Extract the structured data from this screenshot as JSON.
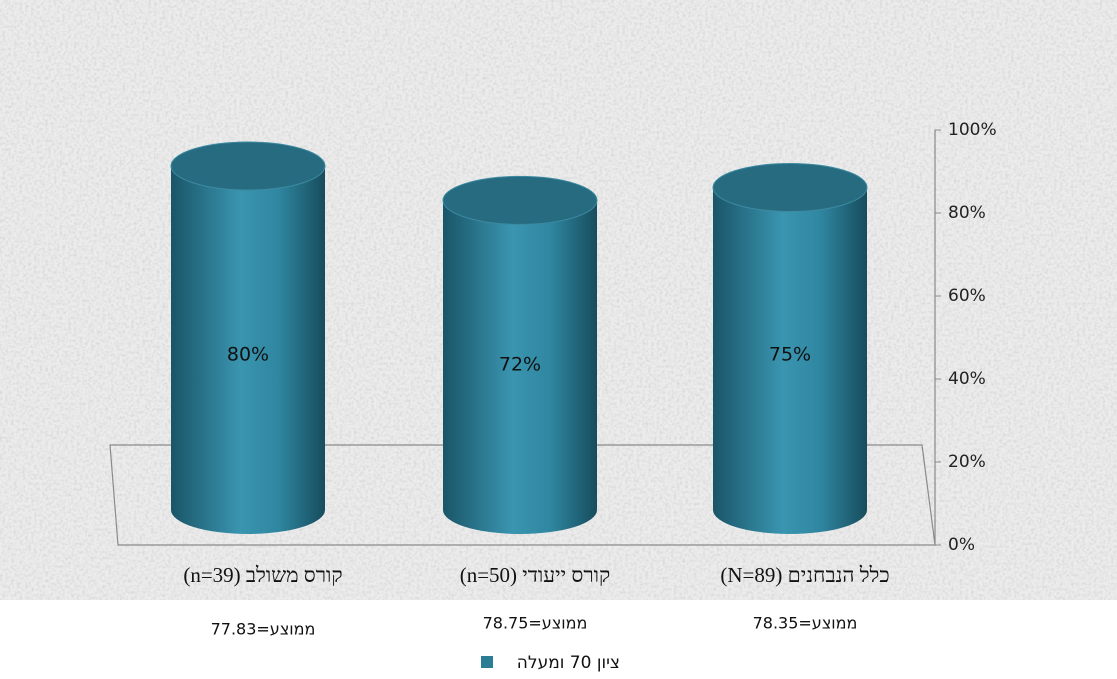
{
  "chart_data": {
    "type": "bar",
    "categories": [
      "כלל הנבחנים (N=89)",
      "קורס ייעודי (n=50)",
      "קורס משולב (n=39)"
    ],
    "category_notes": [
      "ממוצע=78.35",
      "ממוצע=78.75",
      "ממוצע=77.83"
    ],
    "series": [
      {
        "name": "ציון 70 ומעלה",
        "color": "#2b7d96",
        "values": [
          75,
          72,
          80
        ],
        "value_labels": [
          "75%",
          "72%",
          "80%"
        ]
      }
    ],
    "ylim": [
      0,
      100
    ],
    "yticks": [
      {
        "value": 0,
        "label": "0%"
      },
      {
        "value": 20,
        "label": "20%"
      },
      {
        "value": 40,
        "label": "40%"
      },
      {
        "value": 60,
        "label": "60%"
      },
      {
        "value": 80,
        "label": "80%"
      },
      {
        "value": 100,
        "label": "100%"
      }
    ],
    "axis_side": "right",
    "legend": "bottom"
  }
}
